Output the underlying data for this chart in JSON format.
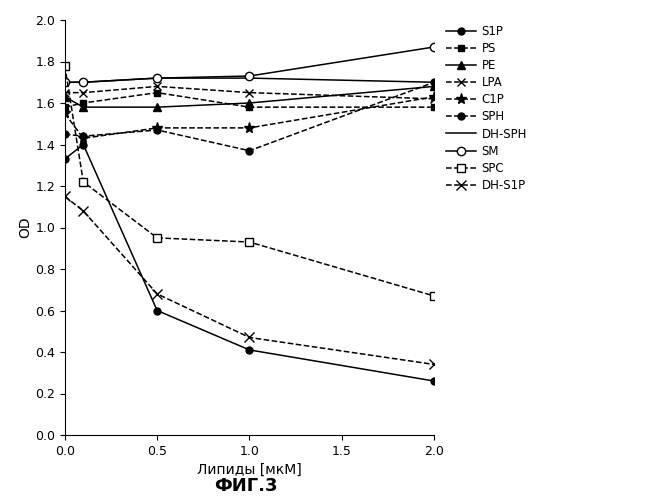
{
  "x": [
    0,
    0.1,
    0.5,
    1,
    2
  ],
  "series": {
    "S1P": {
      "y": [
        1.33,
        1.4,
        0.6,
        0.41,
        0.26
      ],
      "linestyle": "-",
      "marker": "o",
      "markerfacecolor": "black",
      "markersize": 5,
      "label": "S1P"
    },
    "PS": {
      "y": [
        1.58,
        1.6,
        1.65,
        1.58,
        1.58
      ],
      "linestyle": "--",
      "marker": "s",
      "markerfacecolor": "black",
      "markersize": 5,
      "label": "PS"
    },
    "PE": {
      "y": [
        1.63,
        1.58,
        1.58,
        1.6,
        1.68
      ],
      "linestyle": "-",
      "marker": "^",
      "markerfacecolor": "black",
      "markersize": 6,
      "label": "PE"
    },
    "LPA": {
      "y": [
        1.65,
        1.65,
        1.68,
        1.65,
        1.62
      ],
      "linestyle": "--",
      "marker": "x",
      "markerfacecolor": "black",
      "markersize": 6,
      "label": "LPA"
    },
    "C1P": {
      "y": [
        1.55,
        1.43,
        1.48,
        1.48,
        1.63
      ],
      "linestyle": "--",
      "marker": "*",
      "markerfacecolor": "black",
      "markersize": 8,
      "label": "C1P"
    },
    "SPH": {
      "y": [
        1.45,
        1.44,
        1.47,
        1.37,
        1.7
      ],
      "linestyle": "--",
      "marker": "o",
      "markerfacecolor": "black",
      "markersize": 5,
      "label": "SPH"
    },
    "DH-SPH": {
      "y": [
        1.7,
        1.7,
        1.72,
        1.72,
        1.7
      ],
      "linestyle": "-",
      "marker": "None",
      "markerfacecolor": "black",
      "markersize": 0,
      "label": "DH-SPH"
    },
    "SM": {
      "y": [
        1.7,
        1.7,
        1.72,
        1.73,
        1.87
      ],
      "linestyle": "-",
      "marker": "o",
      "markerfacecolor": "white",
      "markersize": 6,
      "label": "SM"
    },
    "SPC": {
      "y": [
        1.78,
        1.22,
        0.95,
        0.93,
        0.67
      ],
      "linestyle": "--",
      "marker": "s",
      "markerfacecolor": "white",
      "markersize": 6,
      "label": "SPC"
    },
    "DH-S1P": {
      "y": [
        1.15,
        1.08,
        0.68,
        0.47,
        0.34
      ],
      "linestyle": "--",
      "marker": "x",
      "markerfacecolor": "black",
      "markersize": 7,
      "label": "DH-S1P"
    }
  },
  "series_order": [
    "S1P",
    "PS",
    "PE",
    "LPA",
    "C1P",
    "SPH",
    "DH-SPH",
    "SM",
    "SPC",
    "DH-S1P"
  ],
  "xlabel": "Липиды [мкМ]",
  "ylabel": "OD",
  "xlim": [
    0,
    2
  ],
  "ylim": [
    0,
    2
  ],
  "xticks": [
    0,
    0.5,
    1,
    1.5,
    2
  ],
  "yticks": [
    0,
    0.2,
    0.4,
    0.6,
    0.8,
    1.0,
    1.2,
    1.4,
    1.6,
    1.8,
    2.0
  ],
  "figure_title": "ФИГ.3",
  "background_color": "#ffffff"
}
